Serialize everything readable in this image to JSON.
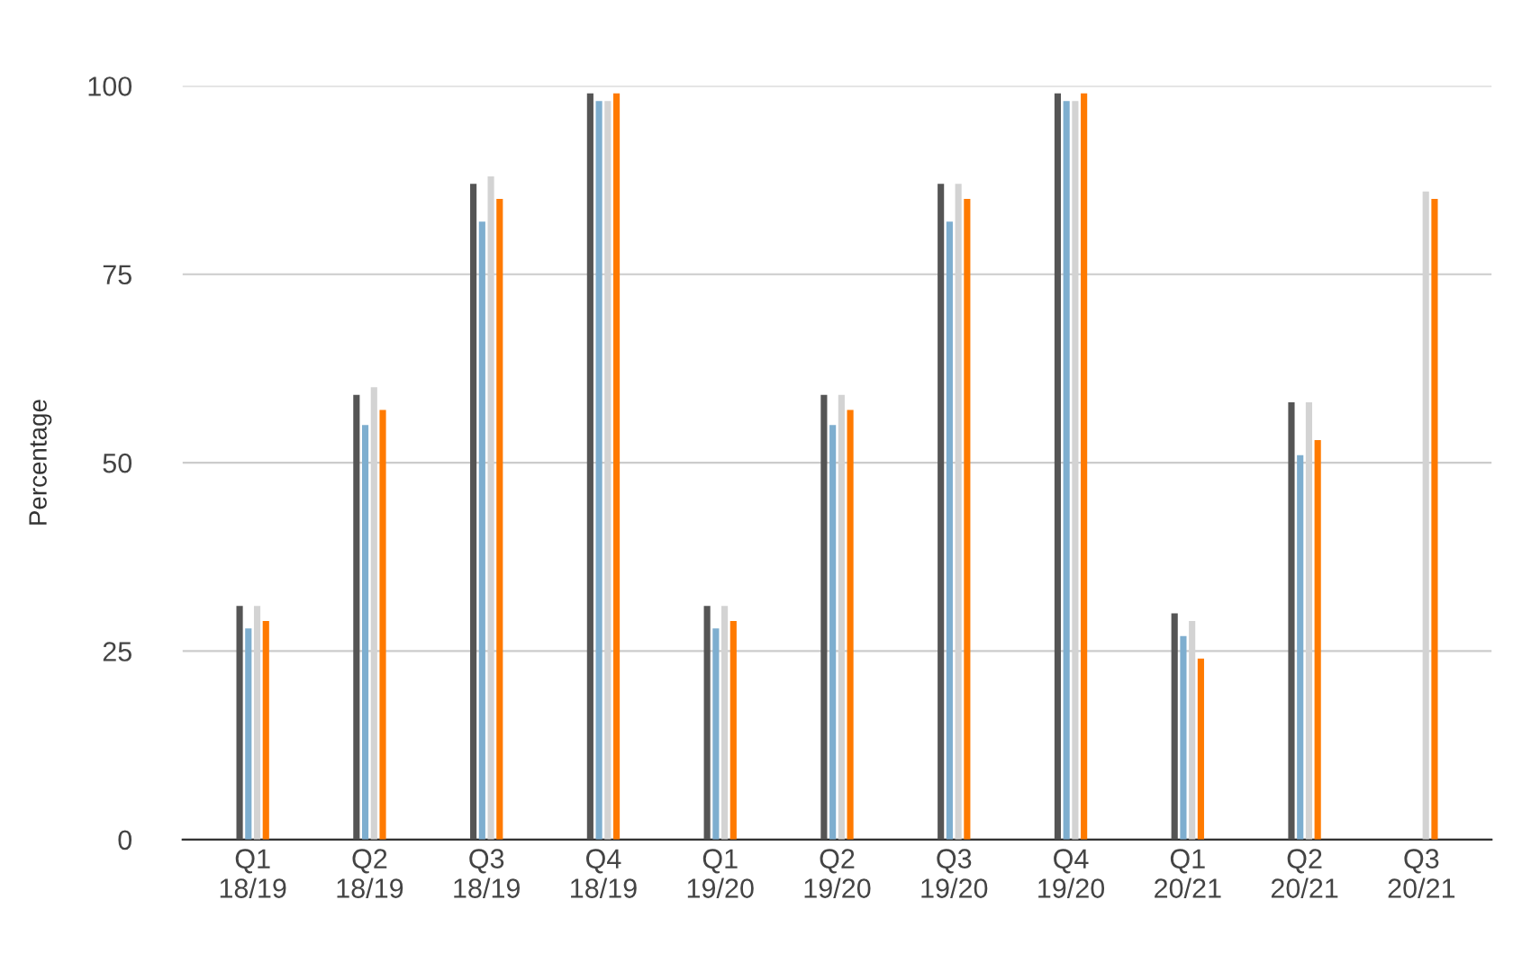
{
  "chart_data": {
    "type": "bar",
    "ylabel": "Percentage",
    "categories": [
      "Q1\n18/19",
      "Q2\n18/19",
      "Q3\n18/19",
      "Q4\n18/19",
      "Q1\n19/20",
      "Q2\n19/20",
      "Q3\n19/20",
      "Q4\n19/20",
      "Q1\n20/21",
      "Q2\n20/21",
      "Q3\n20/21"
    ],
    "series": [
      {
        "color": "#555555",
        "values": [
          31,
          59,
          87,
          99,
          31,
          59,
          87,
          99,
          30,
          58,
          null
        ]
      },
      {
        "color": "#7eaecf",
        "values": [
          28,
          55,
          82,
          98,
          28,
          55,
          82,
          98,
          27,
          51,
          null
        ]
      },
      {
        "color": "#d3d3d3",
        "values": [
          31,
          60,
          88,
          98,
          31,
          59,
          87,
          98,
          29,
          58,
          86
        ]
      },
      {
        "color": "#ff7a00",
        "values": [
          29,
          57,
          85,
          99,
          29,
          57,
          85,
          99,
          24,
          53,
          85
        ]
      }
    ],
    "ylim": [
      0,
      100
    ],
    "yticks": [
      0,
      25,
      50,
      75,
      100
    ],
    "grid": "y"
  }
}
